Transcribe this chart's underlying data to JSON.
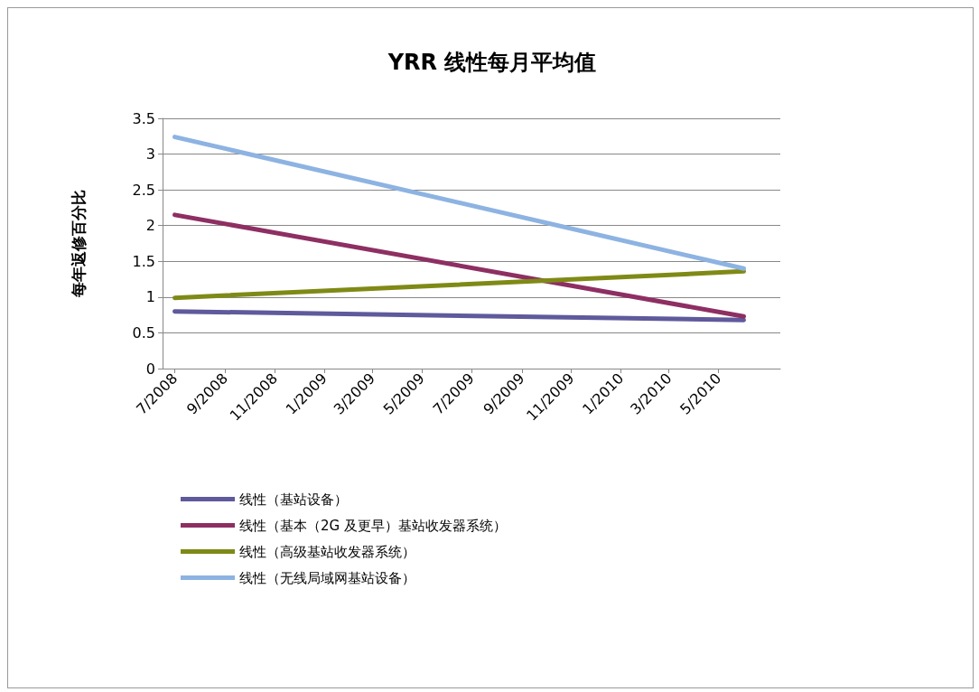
{
  "chart_data": {
    "type": "line",
    "title": "YRR 线性每月平均值",
    "ylabel": "每年返修百分比",
    "xlim": [
      "2008-06-16",
      "2010-07-16"
    ],
    "xticks": [
      {
        "value": "2008-07",
        "label": "7/2008"
      },
      {
        "value": "2008-09",
        "label": "9/2008"
      },
      {
        "value": "2008-11",
        "label": "11/2008"
      },
      {
        "value": "2009-01",
        "label": "1/2009"
      },
      {
        "value": "2009-03",
        "label": "3/2009"
      },
      {
        "value": "2009-05",
        "label": "5/2009"
      },
      {
        "value": "2009-07",
        "label": "7/2009"
      },
      {
        "value": "2009-09",
        "label": "9/2009"
      },
      {
        "value": "2009-11",
        "label": "11/2009"
      },
      {
        "value": "2010-01",
        "label": "1/2010"
      },
      {
        "value": "2010-03",
        "label": "3/2010"
      },
      {
        "value": "2010-05",
        "label": "5/2010"
      }
    ],
    "ylim": [
      0,
      3.5
    ],
    "yticks": [
      0,
      0.5,
      1,
      1.5,
      2,
      2.5,
      3,
      3.5
    ],
    "series": [
      {
        "name": "线性（基站设备）",
        "color": "#5f5a9c",
        "x": [
          "2008-07",
          "2010-06"
        ],
        "values": [
          0.8,
          0.68
        ]
      },
      {
        "name": "线性（基本（2G 及更早）基站收发器系统）",
        "color": "#8e2f63",
        "x": [
          "2008-07",
          "2010-06"
        ],
        "values": [
          2.15,
          0.73
        ]
      },
      {
        "name": "线性（高级基站收发器系统）",
        "color": "#7f8a16",
        "x": [
          "2008-07",
          "2010-06"
        ],
        "values": [
          0.99,
          1.36
        ]
      },
      {
        "name": "线性（无线局域网基站设备）",
        "color": "#8db3e2",
        "x": [
          "2008-07",
          "2010-06"
        ],
        "values": [
          3.24,
          1.4
        ]
      }
    ],
    "grid": "y",
    "legend": "bottom left",
    "marker": "none",
    "line_style": "solid"
  }
}
